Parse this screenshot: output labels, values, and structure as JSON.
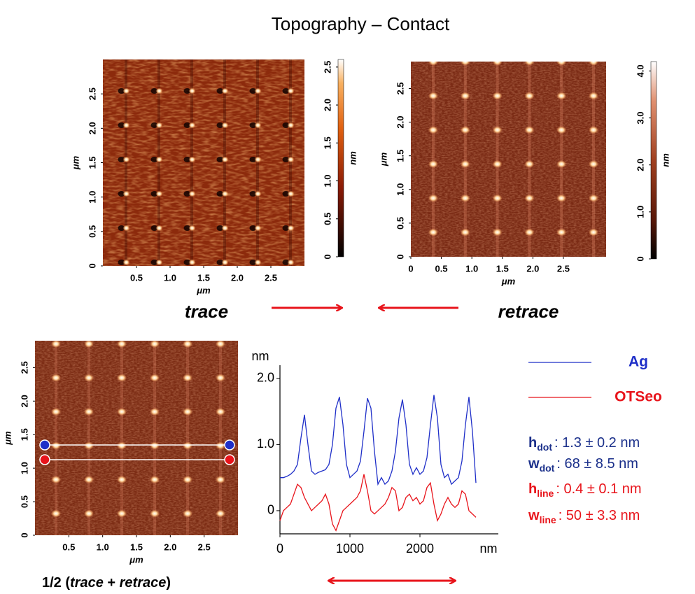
{
  "title": "Topography – Contact",
  "labels": {
    "trace": "trace",
    "retrace": "retrace"
  },
  "caption": [
    {
      "text": "1/2 (",
      "italic": false
    },
    {
      "text": "trace",
      "italic": true
    },
    {
      "text": " + ",
      "italic": false
    },
    {
      "text": "retrace",
      "italic": true
    },
    {
      "text": ")",
      "italic": false
    }
  ],
  "stats": [
    {
      "symbol": "h",
      "sub": "dot",
      "text": ": 1.3 ± 0.2 nm",
      "color": "#1a2f8a"
    },
    {
      "symbol": "w",
      "sub": "dot",
      "text": ": 68 ± 8.5 nm",
      "color": "#1a2f8a"
    },
    {
      "symbol": "h",
      "sub": "line",
      "text": ": 0.4 ± 0.1 nm",
      "color": "#e8141b"
    },
    {
      "symbol": "w",
      "sub": "line",
      "text": ": 50 ± 3.3 nm",
      "color": "#e8141b"
    }
  ],
  "chart_data": [
    {
      "type": "image",
      "xlabel": "μm",
      "ylabel": "μm",
      "xlim": [
        0,
        3.0
      ],
      "ylim": [
        0,
        3.0
      ],
      "xticks": [
        0.5,
        {
          "value": 1,
          "label": "1.0"
        },
        1.5,
        {
          "value": 2,
          "label": "2.0"
        },
        2.5
      ],
      "yticks": [
        0,
        0.5,
        {
          "value": 1,
          "label": "1.0"
        },
        1.5,
        {
          "value": 2,
          "label": "2.0"
        },
        2.5
      ],
      "colorbar": {
        "label": "nm",
        "clim": [
          0,
          2.6
        ],
        "ticks": [
          0,
          0.5,
          {
            "value": 1,
            "label": "1.0"
          },
          1.5,
          {
            "value": 2,
            "label": "2.0"
          },
          2.5
        ]
      }
    },
    {
      "type": "image",
      "xlabel": "μm",
      "ylabel": "μm",
      "xlim": [
        0,
        3.2
      ],
      "ylim": [
        0,
        2.9
      ],
      "xticks": [
        0,
        0.5,
        {
          "value": 1,
          "label": "1.0"
        },
        1.5,
        {
          "value": 2,
          "label": "2.0"
        },
        2.5
      ],
      "yticks": [
        0,
        0.5,
        {
          "value": 1,
          "label": "1.0"
        },
        1.5,
        {
          "value": 2,
          "label": "2.0"
        },
        2.5
      ],
      "colorbar": {
        "label": "nm",
        "clim": [
          0,
          4.2
        ],
        "ticks": [
          0,
          {
            "value": 1,
            "label": "1.0"
          },
          {
            "value": 2,
            "label": "2.0"
          },
          {
            "value": 3,
            "label": "3.0"
          },
          {
            "value": 4,
            "label": "4.0"
          }
        ]
      }
    },
    {
      "type": "image",
      "xlabel": "μm",
      "ylabel": "μm",
      "xlim": [
        0,
        3.0
      ],
      "ylim": [
        0,
        2.9
      ],
      "xticks": [
        0.5,
        {
          "value": 1,
          "label": "1.0"
        },
        1.5,
        {
          "value": 2,
          "label": "2.0"
        },
        2.5
      ],
      "yticks": [
        0,
        0.5,
        {
          "value": 1,
          "label": "1.0"
        },
        1.5,
        {
          "value": 2,
          "label": "2.0"
        },
        2.5
      ]
    },
    {
      "type": "line",
      "xlabel": "nm",
      "ylabel": "nm",
      "xlim": [
        0,
        2900
      ],
      "ylim": [
        -0.35,
        2.2
      ],
      "xticks": [
        0,
        1000,
        2000
      ],
      "yticks": [
        0,
        {
          "value": 1,
          "label": "1.0"
        },
        {
          "value": 2,
          "label": "2.0"
        }
      ],
      "x": [
        0,
        50,
        100,
        150,
        200,
        250,
        300,
        350,
        400,
        450,
        500,
        550,
        600,
        650,
        700,
        750,
        800,
        850,
        900,
        950,
        1000,
        1050,
        1100,
        1150,
        1200,
        1250,
        1300,
        1350,
        1400,
        1450,
        1500,
        1550,
        1600,
        1650,
        1700,
        1750,
        1800,
        1850,
        1900,
        1950,
        2000,
        2050,
        2100,
        2150,
        2200,
        2250,
        2300,
        2350,
        2400,
        2450,
        2500,
        2550,
        2600,
        2650,
        2700,
        2750,
        2800
      ],
      "series": [
        {
          "name": "Ag",
          "color": "#1f2fc8",
          "values": [
            0.5,
            0.5,
            0.52,
            0.55,
            0.6,
            0.7,
            1.1,
            1.45,
            1.0,
            0.6,
            0.55,
            0.58,
            0.6,
            0.62,
            0.7,
            1.0,
            1.55,
            1.72,
            1.3,
            0.7,
            0.5,
            0.55,
            0.6,
            0.75,
            1.2,
            1.7,
            1.55,
            0.9,
            0.4,
            0.5,
            0.4,
            0.45,
            0.6,
            0.9,
            1.4,
            1.68,
            1.3,
            0.7,
            0.55,
            0.65,
            0.55,
            0.6,
            0.8,
            1.3,
            1.75,
            1.4,
            0.7,
            0.5,
            0.55,
            0.4,
            0.45,
            0.5,
            0.75,
            1.3,
            1.72,
            1.2,
            0.42
          ]
        },
        {
          "name": "OTSeo",
          "color": "#e8141b",
          "values": [
            -0.15,
            0.0,
            0.05,
            0.1,
            0.25,
            0.4,
            0.35,
            0.2,
            0.1,
            0.0,
            0.05,
            0.1,
            0.15,
            0.25,
            0.1,
            -0.2,
            -0.3,
            -0.15,
            0.0,
            0.05,
            0.1,
            0.15,
            0.2,
            0.3,
            0.55,
            0.3,
            0.0,
            -0.05,
            0.0,
            0.05,
            0.1,
            0.2,
            0.35,
            0.3,
            0.0,
            0.05,
            0.2,
            0.25,
            0.15,
            0.2,
            0.1,
            0.15,
            0.35,
            0.42,
            0.1,
            -0.15,
            -0.05,
            0.1,
            0.2,
            0.1,
            0.05,
            0.1,
            0.3,
            0.25,
            0.0,
            -0.05,
            -0.1
          ]
        }
      ]
    }
  ]
}
